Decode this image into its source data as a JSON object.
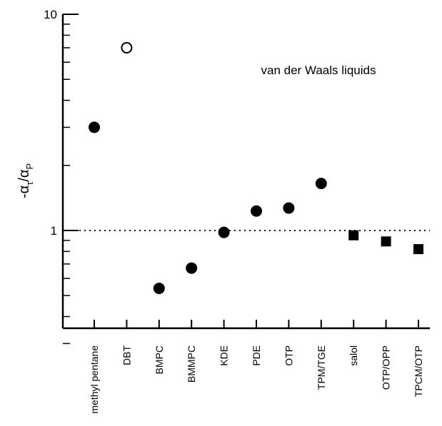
{
  "chart_data": {
    "type": "scatter",
    "title": "",
    "annotation": "van der Waals liquids",
    "ylabel": {
      "main": "-α",
      "sub1": "τ",
      "slash": "/α",
      "sub2": "P"
    },
    "yscale": "log",
    "ylim": [
      0.3,
      10
    ],
    "y_ticks": [
      {
        "value": 1,
        "label": "1"
      },
      {
        "value": 10,
        "label": "10"
      }
    ],
    "reference_line": {
      "y": 1,
      "style": "dotted"
    },
    "categories": [
      "methyl pentane",
      "DBT",
      "BMPC",
      "BMMPC",
      "KDE",
      "PDE",
      "OTP",
      "TPM/TGE",
      "salol",
      "OTP/OPP",
      "TPCM/OTP"
    ],
    "points": [
      {
        "category": "methyl pentane",
        "y": 3.0,
        "marker": "filled-circle"
      },
      {
        "category": "DBT",
        "y": 7.0,
        "marker": "open-circle"
      },
      {
        "category": "BMPC",
        "y": 0.54,
        "marker": "filled-circle"
      },
      {
        "category": "BMMPC",
        "y": 0.67,
        "marker": "filled-circle"
      },
      {
        "category": "KDE",
        "y": 0.98,
        "marker": "filled-circle"
      },
      {
        "category": "PDE",
        "y": 1.23,
        "marker": "filled-circle"
      },
      {
        "category": "OTP",
        "y": 1.27,
        "marker": "filled-circle"
      },
      {
        "category": "TPM/TGE",
        "y": 1.65,
        "marker": "filled-circle"
      },
      {
        "category": "salol",
        "y": 0.95,
        "marker": "filled-square"
      },
      {
        "category": "OTP/OPP",
        "y": 0.89,
        "marker": "filled-square"
      },
      {
        "category": "TPCM/OTP",
        "y": 0.82,
        "marker": "filled-square"
      }
    ],
    "grid": false,
    "legend": "none"
  }
}
